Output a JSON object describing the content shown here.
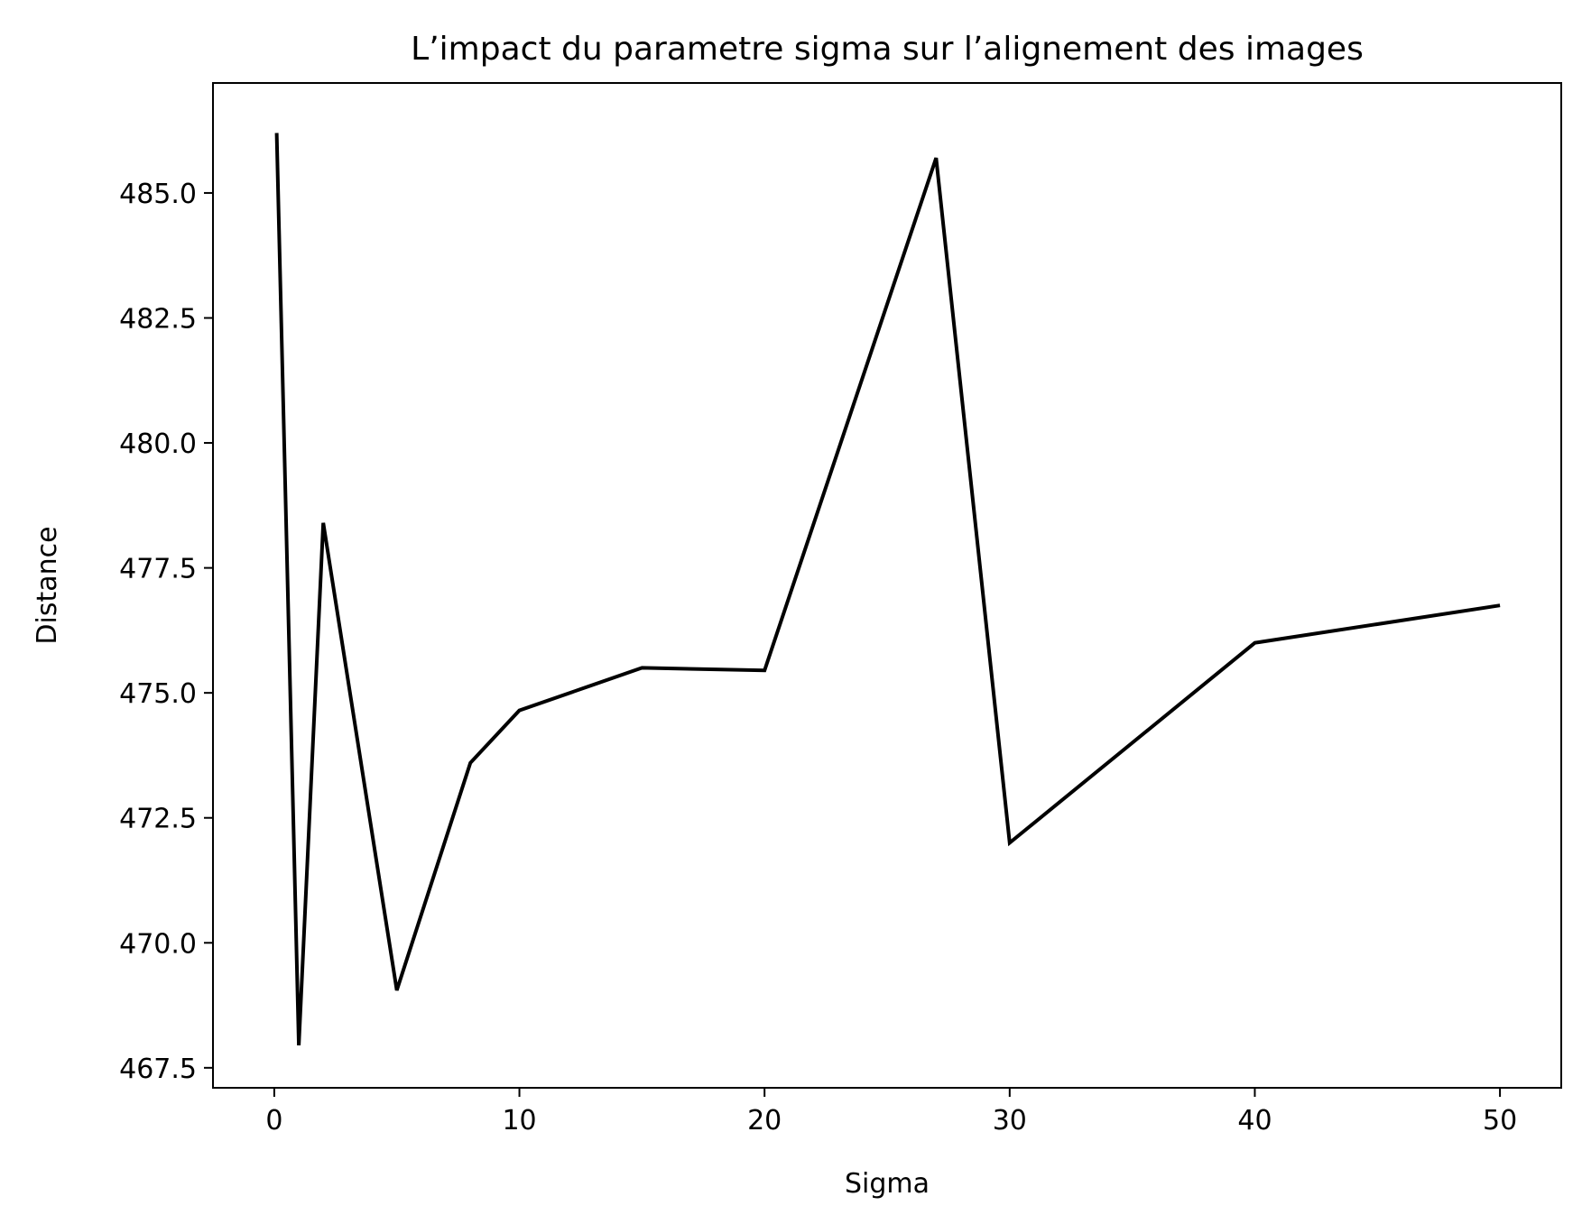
{
  "chart_data": {
    "type": "line",
    "title": "L’impact du parametre sigma sur l’alignement des images",
    "xlabel": "Sigma",
    "ylabel": "Distance",
    "xlim": [
      -2.5,
      52.5
    ],
    "ylim": [
      467.1,
      487.2
    ],
    "xticks": [
      0,
      10,
      20,
      30,
      40,
      50
    ],
    "xtick_labels": [
      "0",
      "10",
      "20",
      "30",
      "40",
      "50"
    ],
    "yticks": [
      467.5,
      470.0,
      472.5,
      475.0,
      477.5,
      480.0,
      482.5,
      485.0
    ],
    "ytick_labels": [
      "467.5",
      "470.0",
      "472.5",
      "475.0",
      "477.5",
      "480.0",
      "482.5",
      "485.0"
    ],
    "grid": false,
    "line_color": "#000000",
    "series": [
      {
        "x": [
          0.1,
          1,
          2,
          5,
          8,
          10,
          15,
          20,
          27,
          30,
          40,
          50
        ],
        "y": [
          486.2,
          467.95,
          478.4,
          469.05,
          473.6,
          474.65,
          475.5,
          475.45,
          485.7,
          472.0,
          476.0,
          476.75
        ]
      }
    ]
  }
}
